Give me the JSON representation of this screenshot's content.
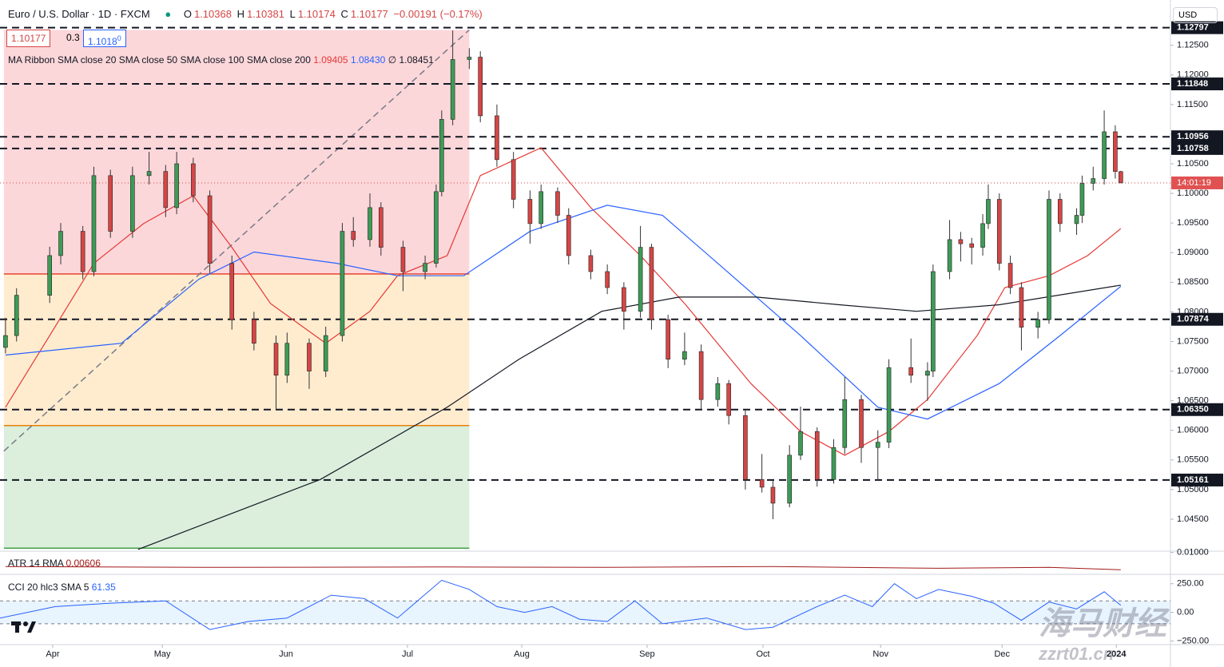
{
  "header": {
    "symbol": "Euro / U.S. Dollar · 1D · FXCM",
    "o_label": "O",
    "open": 1.10368,
    "h_label": "H",
    "high": 1.10381,
    "l_label": "L",
    "low": 1.10174,
    "c_label": "C",
    "close": 1.10177,
    "change": "−0.00191 (−0.17%)"
  },
  "quote": {
    "bid": "1.10177",
    "spread": "0.3",
    "ask": "1.1018",
    "ask_sup": "0"
  },
  "currency": "USD",
  "countdown": "14:01:19",
  "watermark": {
    "cn": "海马财经",
    "url": "zzrt01.cn"
  },
  "chart_data": [
    {
      "type": "candlestick",
      "indicator": "MA Ribbon SMA close 20 SMA close 50 SMA close 100 SMA close 200",
      "legend_values": [
        {
          "value": 1.09405,
          "label": "1.09405"
        },
        {
          "value": 1.0843,
          "label": "1.08430"
        },
        {
          "label": "∅"
        },
        {
          "value": 1.08451,
          "label": "1.08451"
        }
      ],
      "up_color": "#3d9b56",
      "down_color": "#d64545",
      "xlim": [
        0,
        212
      ],
      "ylim": [
        1.0396,
        1.1286
      ],
      "xticks": [
        {
          "value": 9.55,
          "label": "Apr"
        },
        {
          "value": 29.4,
          "label": "May"
        },
        {
          "value": 51.8,
          "label": "Jun"
        },
        {
          "value": 73.8,
          "label": "Jul"
        },
        {
          "value": 94.5,
          "label": "Aug"
        },
        {
          "value": 117.2,
          "label": "Sep"
        },
        {
          "value": 138.2,
          "label": "Oct"
        },
        {
          "value": 159.5,
          "label": "Nov"
        },
        {
          "value": 181.5,
          "label": "Dec"
        },
        {
          "value": 202.2,
          "label": "2024"
        }
      ],
      "yticks": [
        {
          "value": 1.045,
          "label": "1.04500"
        },
        {
          "value": 1.05,
          "label": "1.05000"
        },
        {
          "value": 1.055,
          "label": "1.05500"
        },
        {
          "value": 1.06,
          "label": "1.06000"
        },
        {
          "value": 1.065,
          "label": "1.06500"
        },
        {
          "value": 1.07,
          "label": "1.07000"
        },
        {
          "value": 1.075,
          "label": "1.07500"
        },
        {
          "value": 1.08,
          "label": "1.08000"
        },
        {
          "value": 1.085,
          "label": "1.08500"
        },
        {
          "value": 1.09,
          "label": "1.09000"
        },
        {
          "value": 1.095,
          "label": "1.09500"
        },
        {
          "value": 1.1,
          "label": "1.10000"
        },
        {
          "value": 1.105,
          "label": "1.10500"
        },
        {
          "value": 1.11,
          "label": "1.11000"
        },
        {
          "value": 1.115,
          "label": "1.11500"
        },
        {
          "value": 1.12,
          "label": "1.12000"
        },
        {
          "value": 1.125,
          "label": "1.12500"
        }
      ],
      "levels": [
        1.12797,
        1.11848,
        1.10956,
        1.10758,
        1.07874,
        {
          "value": 1.0635,
          "label": "1.06350"
        },
        1.05161
      ],
      "zones": [
        {
          "from": 1.1276,
          "to": 1.0864,
          "color": "rgba(242,54,69,0.2)",
          "line": "#e53935"
        },
        {
          "from": 1.0864,
          "to": 1.0608,
          "color": "rgba(255,167,38,0.22)",
          "line": "#f57c00"
        },
        {
          "from": 1.0608,
          "to": 1.0401,
          "color": "rgba(76,175,80,0.2)",
          "line": "#43a047"
        }
      ],
      "zone_x": [
        0.7,
        85
      ],
      "trendline": {
        "x": [
          0.7,
          85
        ],
        "values": [
          1.0565,
          1.1276
        ]
      },
      "candles": [
        [
          1,
          1.074,
          1.079,
          1.073,
          1.076
        ],
        [
          3,
          1.076,
          1.084,
          1.075,
          1.0828
        ],
        [
          9,
          1.0828,
          1.091,
          1.0815,
          1.0895
        ],
        [
          11,
          1.0895,
          1.095,
          1.088,
          1.0936
        ],
        [
          15,
          1.0936,
          1.0945,
          1.0855,
          1.0868
        ],
        [
          17,
          1.0868,
          1.1045,
          1.086,
          1.103
        ],
        [
          20,
          1.103,
          1.104,
          1.0925,
          1.0936
        ],
        [
          24,
          1.0936,
          1.1045,
          1.0925,
          1.103
        ],
        [
          27,
          1.103,
          1.107,
          1.1015,
          1.1037
        ],
        [
          30,
          1.1037,
          1.1048,
          1.096,
          1.0976
        ],
        [
          32,
          1.0976,
          1.107,
          1.0965,
          1.105
        ],
        [
          35,
          1.105,
          1.106,
          1.0985,
          1.0996
        ],
        [
          38,
          1.0996,
          1.1005,
          1.0865,
          1.0882
        ],
        [
          42,
          1.0882,
          1.0895,
          1.077,
          1.0787
        ],
        [
          46,
          1.0787,
          1.08,
          1.0735,
          1.0747
        ],
        [
          50,
          1.0747,
          1.076,
          1.0635,
          1.0693
        ],
        [
          52,
          1.0693,
          1.0765,
          1.068,
          1.0747
        ],
        [
          56,
          1.0747,
          1.0755,
          1.067,
          1.07
        ],
        [
          59,
          1.07,
          1.0775,
          1.069,
          1.076
        ],
        [
          62,
          1.076,
          1.095,
          1.075,
          1.0936
        ],
        [
          64,
          1.0936,
          1.096,
          1.091,
          1.0922
        ],
        [
          67,
          1.0922,
          1.1,
          1.091,
          1.0976
        ],
        [
          69,
          1.0976,
          1.0985,
          1.0895,
          1.0909
        ],
        [
          73,
          1.0909,
          1.092,
          1.0835,
          1.0868
        ],
        [
          77,
          1.0868,
          1.0895,
          1.0855,
          1.0882
        ],
        [
          79,
          1.0882,
          1.1015,
          1.0875,
          1.1003
        ],
        [
          80,
          1.1003,
          1.114,
          1.0995,
          1.1125
        ],
        [
          82,
          1.1125,
          1.1275,
          1.1115,
          1.1226
        ],
        [
          85,
          1.1226,
          1.1245,
          1.121,
          1.123
        ],
        [
          87,
          1.123,
          1.124,
          1.112,
          1.1131
        ],
        [
          90,
          1.1131,
          1.115,
          1.1045,
          1.1057
        ],
        [
          93,
          1.1057,
          1.107,
          1.0975,
          1.099
        ],
        [
          96,
          1.099,
          1.1005,
          1.0915,
          1.0949
        ],
        [
          98,
          1.0949,
          1.1015,
          1.094,
          1.1003
        ],
        [
          101,
          1.1003,
          1.101,
          1.095,
          1.0963
        ],
        [
          103,
          1.0963,
          1.0975,
          1.088,
          1.0895
        ],
        [
          107,
          1.0895,
          1.0905,
          1.0855,
          1.0868
        ],
        [
          110,
          1.0868,
          1.088,
          1.083,
          1.0841
        ],
        [
          113,
          1.0841,
          1.085,
          1.077,
          1.0801
        ],
        [
          116,
          1.0801,
          1.0945,
          1.079,
          1.0909
        ],
        [
          118,
          1.0909,
          1.0915,
          1.077,
          1.0787
        ],
        [
          121,
          1.0787,
          1.0795,
          1.0705,
          1.072
        ],
        [
          124,
          1.072,
          1.0765,
          1.071,
          1.0733
        ],
        [
          127,
          1.0733,
          1.0745,
          1.0635,
          1.0652
        ],
        [
          130,
          1.0652,
          1.069,
          1.064,
          1.0679
        ],
        [
          132,
          1.0679,
          1.0685,
          1.061,
          1.0625
        ],
        [
          135,
          1.0625,
          1.0635,
          1.05,
          1.0517
        ],
        [
          138,
          1.0517,
          1.056,
          1.0495,
          1.0504
        ],
        [
          140,
          1.0504,
          1.0515,
          1.045,
          1.0477
        ],
        [
          143,
          1.0477,
          1.0575,
          1.047,
          1.0558
        ],
        [
          145,
          1.0558,
          1.064,
          1.055,
          1.0598
        ],
        [
          148,
          1.0598,
          1.0605,
          1.0505,
          1.0517
        ],
        [
          151,
          1.0517,
          1.0585,
          1.051,
          1.0571
        ],
        [
          153,
          1.0571,
          1.069,
          1.056,
          1.0652
        ],
        [
          156,
          1.0652,
          1.066,
          1.0545,
          1.0571
        ],
        [
          159,
          1.0571,
          1.06,
          1.0515,
          1.058
        ],
        [
          161,
          1.058,
          1.072,
          1.057,
          1.0706
        ],
        [
          165,
          1.0706,
          1.0755,
          1.068,
          1.0693
        ],
        [
          168,
          1.0693,
          1.0715,
          1.065,
          1.07
        ],
        [
          169,
          1.07,
          1.088,
          1.069,
          1.0868
        ],
        [
          172,
          1.0868,
          1.0955,
          1.0855,
          1.0922
        ],
        [
          174,
          1.0922,
          1.0935,
          1.0885,
          1.0915
        ],
        [
          176,
          1.0915,
          1.0925,
          1.088,
          1.0909
        ],
        [
          178,
          1.0909,
          1.0965,
          1.0895,
          1.0949
        ],
        [
          179,
          1.0949,
          1.1015,
          1.094,
          1.099
        ],
        [
          181,
          1.099,
          1.1,
          1.087,
          1.0882
        ],
        [
          183,
          1.0882,
          1.0895,
          1.083,
          1.0841
        ],
        [
          185,
          1.0841,
          1.085,
          1.0735,
          1.0774
        ],
        [
          188,
          1.0774,
          1.08,
          1.0755,
          1.0787
        ],
        [
          190,
          1.0787,
          1.1005,
          1.078,
          1.099
        ],
        [
          192,
          1.099,
          1.1,
          1.0935,
          1.0949
        ],
        [
          195,
          1.0949,
          1.0975,
          1.093,
          1.0963
        ],
        [
          196,
          1.0963,
          1.103,
          1.095,
          1.1017
        ],
        [
          198,
          1.1017,
          1.1045,
          1.1005,
          1.1025
        ],
        [
          200,
          1.1025,
          1.114,
          1.1015,
          1.1104
        ],
        [
          202,
          1.1104,
          1.1115,
          1.1025,
          1.1037
        ],
        [
          203,
          1.10368,
          1.10381,
          1.10174,
          1.10177
        ]
      ],
      "series": [
        {
          "color": "#e53935",
          "x": [
            1,
            9,
            17,
            26,
            35,
            42,
            49,
            59,
            67,
            72,
            81,
            87,
            98,
            107,
            116,
            124,
            136,
            145,
            153,
            161,
            168,
            177,
            182,
            190,
            197,
            203
          ],
          "values": [
            1.0639,
            1.076,
            1.0882,
            1.0949,
            1.0996,
            1.0909,
            1.0814,
            1.0747,
            1.0801,
            1.0861,
            1.0895,
            1.103,
            1.1077,
            1.0976,
            1.0895,
            1.0814,
            1.0679,
            1.0598,
            1.0558,
            1.0598,
            1.0652,
            1.076,
            1.0841,
            1.0861,
            1.0895,
            1.09405
          ]
        },
        {
          "color": "#2962ff",
          "x": [
            1,
            22,
            36,
            46,
            61,
            72,
            84,
            96,
            110,
            120,
            130,
            145,
            159,
            168,
            181,
            192,
            203
          ],
          "values": [
            1.0727,
            1.0747,
            1.0855,
            1.0901,
            1.0882,
            1.0861,
            1.0861,
            1.0936,
            1.098,
            1.0963,
            1.0882,
            1.076,
            1.0639,
            1.0619,
            1.0679,
            1.076,
            1.0843
          ]
        },
        {
          "color": "#131722",
          "x": [
            25,
            58,
            81,
            94,
            109,
            123,
            137,
            152,
            166,
            181,
            203
          ],
          "values": [
            1.0399,
            1.0517,
            1.0639,
            1.072,
            1.0801,
            1.0825,
            1.0825,
            1.0812,
            1.0801,
            1.0812,
            1.08451
          ]
        }
      ]
    },
    {
      "type": "line",
      "title": "ATR 14 RMA",
      "value_label": "0.00606",
      "xlim": [
        0,
        212
      ],
      "ylim": [
        0.0052,
        0.0103
      ],
      "yticks": [
        {
          "value": 0.01,
          "label": "0.01000"
        }
      ],
      "series": [
        {
          "color": "#a31919",
          "x": [
            1,
            40,
            80,
            110,
            140,
            170,
            190,
            203
          ],
          "values": [
            0.0068,
            0.0066,
            0.0067,
            0.0066,
            0.0068,
            0.0064,
            0.0066,
            0.00606
          ]
        }
      ]
    },
    {
      "type": "line",
      "title": "CCI 20 hlc3 SMA 5",
      "value_label": "61.35",
      "xlim": [
        0,
        212
      ],
      "ylim": [
        -275,
        311
      ],
      "yticks": [
        {
          "value": 250,
          "label": "250.00"
        },
        {
          "value": 0,
          "label": "0.00"
        },
        {
          "value": -250,
          "label": "−250.00"
        }
      ],
      "band": [
        100,
        -100
      ],
      "series": [
        {
          "color": "#2962ff",
          "x": [
            0,
            10,
            20,
            30,
            38,
            45,
            52,
            60,
            66,
            72,
            80,
            85,
            90,
            95,
            100,
            105,
            110,
            115,
            120,
            128,
            135,
            140,
            148,
            153,
            158,
            162,
            166,
            170,
            176,
            180,
            185,
            190,
            195,
            200,
            203
          ],
          "values": [
            -50,
            50,
            80,
            100,
            -150,
            -80,
            -50,
            150,
            120,
            -50,
            280,
            200,
            50,
            0,
            50,
            -60,
            -80,
            100,
            -100,
            -50,
            -150,
            -130,
            50,
            150,
            50,
            250,
            120,
            200,
            140,
            80,
            -70,
            90,
            30,
            180,
            61.35
          ]
        }
      ]
    }
  ]
}
